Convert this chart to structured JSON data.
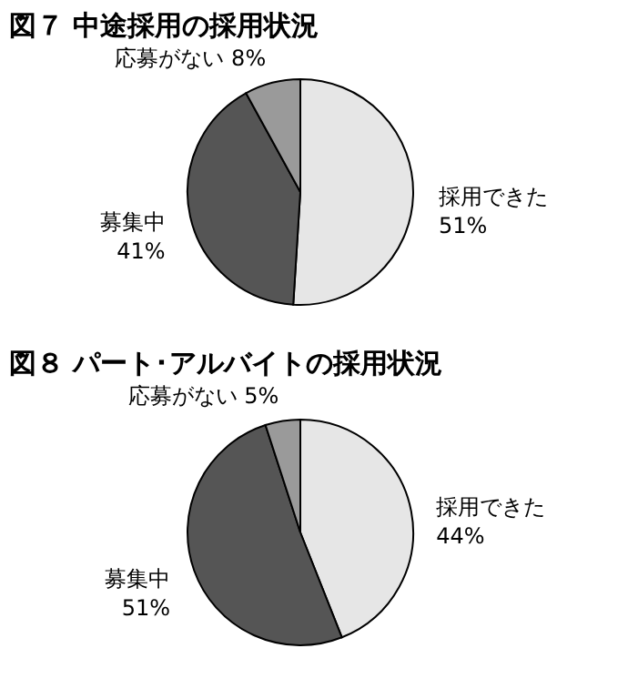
{
  "chart_data": [
    {
      "type": "pie",
      "title": "図７ 中途採用の採用状況",
      "categories": [
        "採用できた",
        "募集中",
        "応募がない"
      ],
      "values": [
        51,
        41,
        8
      ],
      "value_labels": [
        "51%",
        "41%",
        "8%"
      ],
      "colors": [
        "#e6e6e6",
        "#555555",
        "#9a9a9a"
      ],
      "legend": false
    },
    {
      "type": "pie",
      "title": "図８ パート･アルバイトの採用状況",
      "categories": [
        "採用できた",
        "募集中",
        "応募がない"
      ],
      "values": [
        44,
        51,
        5
      ],
      "value_labels": [
        "44%",
        "51%",
        "5%"
      ],
      "colors": [
        "#e6e6e6",
        "#555555",
        "#9a9a9a"
      ],
      "legend": false
    }
  ]
}
